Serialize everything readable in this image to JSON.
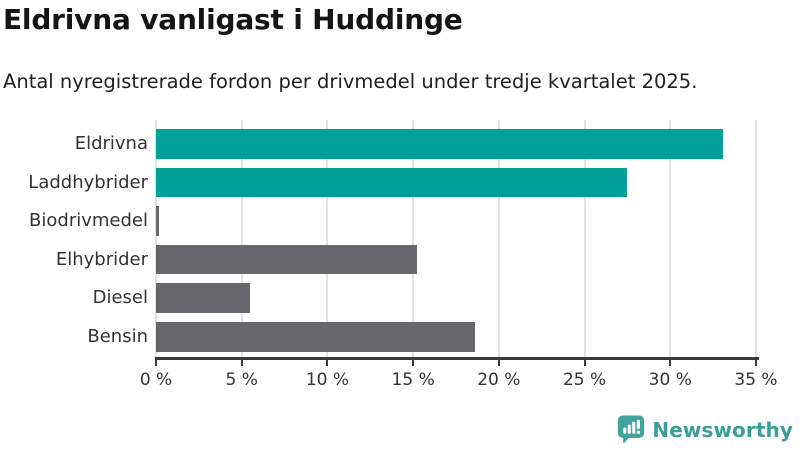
{
  "header": {
    "title": "Eldrivna vanligast i Huddinge",
    "subtitle": "Antal nyregistrerade fordon per drivmedel under tredje kvartalet 2025."
  },
  "chart_data": {
    "type": "bar",
    "orientation": "horizontal",
    "title": "Eldrivna vanligast i Huddinge",
    "subtitle": "Antal nyregistrerade fordon per drivmedel under tredje kvartalet 2025.",
    "categories": [
      "Eldrivna",
      "Laddhybrider",
      "Biodrivmedel",
      "Elhybrider",
      "Diesel",
      "Bensin"
    ],
    "values": [
      33.1,
      27.5,
      0.2,
      15.2,
      5.5,
      18.6
    ],
    "value_unit": "%",
    "bar_colors": [
      "#00a097",
      "#00a097",
      "#66666b",
      "#66666b",
      "#66666b",
      "#66666b"
    ],
    "colors": {
      "accent_teal": "#00a097",
      "neutral_gray": "#66666b",
      "gridline": "#e2e2e2",
      "axis": "#3a3a3a"
    },
    "x_ticks": [
      {
        "value": 0,
        "label": "0 %"
      },
      {
        "value": 5,
        "label": "5 %"
      },
      {
        "value": 10,
        "label": "10 %"
      },
      {
        "value": 15,
        "label": "15 %"
      },
      {
        "value": 20,
        "label": "20 %"
      },
      {
        "value": 25,
        "label": "25 %"
      },
      {
        "value": 30,
        "label": "30 %"
      },
      {
        "value": 35,
        "label": "35 %"
      }
    ],
    "xlim": [
      0,
      35
    ],
    "grid": true,
    "legend": false
  },
  "footer": {
    "brand": "Newsworthy",
    "logo_icon": "newsworthy-speech-bubble-chart-icon",
    "brand_color": "#3a9e97",
    "icon_color": "#41a39c"
  }
}
